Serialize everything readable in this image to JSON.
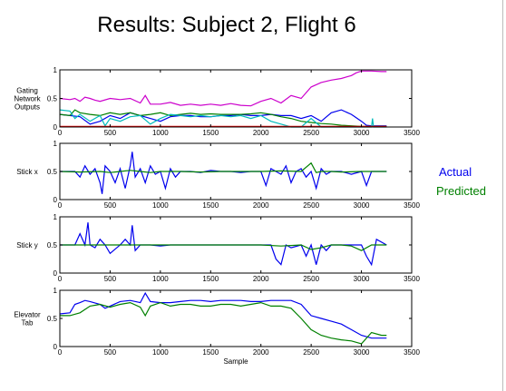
{
  "title": "Results: Subject 2, Flight 6",
  "legend": {
    "actual": "Actual",
    "predicted": "Predicted"
  },
  "colors": {
    "actual": "#0000ee",
    "predicted": "#008000",
    "magenta": "#cc00cc",
    "cyan": "#00bbbb",
    "red": "#ee0000"
  },
  "chart_data": [
    {
      "type": "line",
      "ylabel": "Gating\nNetwork\nOutputs",
      "xlim": [
        0,
        3500
      ],
      "ylim": [
        0,
        1
      ],
      "xticks": [
        "0",
        "500",
        "1000",
        "1500",
        "2000",
        "2500",
        "3000",
        "3500"
      ],
      "yticks": [
        "0",
        "0.5",
        "1"
      ],
      "series": [
        {
          "color": "#cc00cc",
          "x": [
            0,
            100,
            150,
            200,
            250,
            300,
            350,
            400,
            500,
            600,
            700,
            800,
            850,
            900,
            1000,
            1100,
            1200,
            1300,
            1400,
            1500,
            1600,
            1700,
            1800,
            1900,
            2000,
            2100,
            2200,
            2300,
            2400,
            2500,
            2600,
            2700,
            2800,
            2900,
            2950,
            3000,
            3100,
            3200,
            3250
          ],
          "y": [
            0.5,
            0.48,
            0.5,
            0.45,
            0.52,
            0.5,
            0.47,
            0.45,
            0.5,
            0.48,
            0.5,
            0.42,
            0.55,
            0.4,
            0.4,
            0.43,
            0.38,
            0.4,
            0.38,
            0.4,
            0.38,
            0.41,
            0.38,
            0.37,
            0.45,
            0.5,
            0.42,
            0.55,
            0.5,
            0.7,
            0.78,
            0.82,
            0.85,
            0.9,
            0.95,
            0.98,
            0.98,
            0.97,
            0.97
          ]
        },
        {
          "color": "#0000ee",
          "x": [
            0,
            100,
            200,
            300,
            400,
            500,
            600,
            700,
            800,
            900,
            1000,
            1100,
            1200,
            1300,
            1400,
            1500,
            1600,
            1700,
            1800,
            1900,
            2000,
            2100,
            2200,
            2300,
            2400,
            2500,
            2600,
            2700,
            2800,
            2900,
            3000,
            3050,
            3100,
            3250
          ],
          "y": [
            0.22,
            0.2,
            0.18,
            0.05,
            0.1,
            0.2,
            0.15,
            0.25,
            0.2,
            0.15,
            0.1,
            0.18,
            0.2,
            0.2,
            0.18,
            0.18,
            0.2,
            0.2,
            0.22,
            0.2,
            0.2,
            0.22,
            0.2,
            0.2,
            0.15,
            0.2,
            0.1,
            0.25,
            0.3,
            0.22,
            0.1,
            0.03,
            0.02,
            0.02
          ]
        },
        {
          "color": "#008000",
          "x": [
            0,
            100,
            150,
            200,
            300,
            400,
            500,
            600,
            700,
            800,
            900,
            1000,
            1100,
            1200,
            1300,
            1400,
            1500,
            1600,
            1700,
            1800,
            1900,
            2000,
            2100,
            2200,
            2300,
            2400,
            2500,
            2600,
            2700,
            2800,
            2900,
            3000,
            3250
          ],
          "y": [
            0.22,
            0.2,
            0.3,
            0.25,
            0.22,
            0.2,
            0.25,
            0.22,
            0.25,
            0.2,
            0.22,
            0.25,
            0.2,
            0.22,
            0.24,
            0.22,
            0.23,
            0.22,
            0.22,
            0.22,
            0.23,
            0.25,
            0.22,
            0.18,
            0.15,
            0.1,
            0.08,
            0.06,
            0.05,
            0.03,
            0.02,
            0.01,
            0.01
          ]
        },
        {
          "color": "#00bbbb",
          "x": [
            0,
            100,
            150,
            200,
            300,
            400,
            450,
            500,
            600,
            700,
            800,
            900,
            1000,
            1100,
            1200,
            1300,
            1400,
            1500,
            1600,
            1700,
            1800,
            1900,
            2000,
            2100,
            2200,
            2300,
            2400,
            2500,
            2600,
            2700,
            2800,
            2900,
            3000,
            3100,
            3110,
            3120,
            3250
          ],
          "y": [
            0.3,
            0.28,
            0.15,
            0.22,
            0.1,
            0.2,
            0.02,
            0.15,
            0.1,
            0.18,
            0.2,
            0.05,
            0.15,
            0.22,
            0.2,
            0.18,
            0.2,
            0.18,
            0.2,
            0.18,
            0.2,
            0.15,
            0.2,
            0.1,
            0.05,
            0.0,
            0.0,
            0.15,
            0.0,
            0.0,
            0.0,
            0.0,
            0.0,
            0.0,
            0.15,
            0.0,
            0.0
          ]
        },
        {
          "color": "#ee0000",
          "x": [
            0,
            3250
          ],
          "y": [
            0.01,
            0.01
          ]
        }
      ]
    },
    {
      "type": "line",
      "ylabel": "Stick x",
      "xlim": [
        0,
        3500
      ],
      "ylim": [
        0,
        1
      ],
      "xticks": [
        "0",
        "500",
        "1000",
        "1500",
        "2000",
        "2500",
        "3000",
        "3500"
      ],
      "yticks": [
        "0",
        "0.5",
        "1"
      ],
      "series": [
        {
          "name": "Actual",
          "color": "#0000ee",
          "x": [
            0,
            150,
            200,
            250,
            300,
            350,
            400,
            420,
            450,
            500,
            550,
            600,
            650,
            700,
            720,
            750,
            800,
            850,
            900,
            950,
            1000,
            1050,
            1100,
            1150,
            1200,
            1300,
            1400,
            1500,
            1600,
            1700,
            1800,
            1900,
            2000,
            2050,
            2100,
            2150,
            2200,
            2250,
            2300,
            2350,
            2400,
            2450,
            2500,
            2550,
            2600,
            2650,
            2700,
            2800,
            2900,
            3000,
            3050,
            3100,
            3150,
            3250
          ],
          "y": [
            0.5,
            0.5,
            0.4,
            0.6,
            0.45,
            0.55,
            0.3,
            0.1,
            0.6,
            0.5,
            0.3,
            0.55,
            0.2,
            0.6,
            0.85,
            0.4,
            0.55,
            0.3,
            0.6,
            0.45,
            0.5,
            0.2,
            0.55,
            0.4,
            0.5,
            0.5,
            0.48,
            0.52,
            0.5,
            0.5,
            0.48,
            0.5,
            0.5,
            0.25,
            0.55,
            0.5,
            0.45,
            0.6,
            0.3,
            0.5,
            0.55,
            0.4,
            0.5,
            0.2,
            0.55,
            0.45,
            0.5,
            0.5,
            0.45,
            0.5,
            0.25,
            0.5,
            0.5,
            0.5
          ]
        },
        {
          "name": "Predicted",
          "color": "#008000",
          "x": [
            0,
            200,
            400,
            500,
            600,
            700,
            800,
            900,
            1000,
            1200,
            1400,
            1600,
            1800,
            2000,
            2200,
            2400,
            2500,
            2550,
            2600,
            2700,
            2800,
            3000,
            3100,
            3250
          ],
          "y": [
            0.5,
            0.49,
            0.5,
            0.48,
            0.5,
            0.52,
            0.5,
            0.48,
            0.5,
            0.5,
            0.49,
            0.5,
            0.5,
            0.5,
            0.51,
            0.5,
            0.65,
            0.48,
            0.5,
            0.5,
            0.49,
            0.5,
            0.5,
            0.5
          ]
        }
      ]
    },
    {
      "type": "line",
      "ylabel": "Stick y",
      "xlim": [
        0,
        3500
      ],
      "ylim": [
        0,
        1
      ],
      "xticks": [
        "0",
        "500",
        "1000",
        "1500",
        "2000",
        "2500",
        "3000",
        "3500"
      ],
      "yticks": [
        "0",
        "0.5",
        "1"
      ],
      "series": [
        {
          "name": "Actual",
          "color": "#0000ee",
          "x": [
            0,
            150,
            200,
            250,
            280,
            300,
            350,
            400,
            450,
            500,
            600,
            650,
            700,
            720,
            750,
            800,
            900,
            1000,
            1100,
            1200,
            1400,
            1600,
            1800,
            2000,
            2100,
            2150,
            2200,
            2250,
            2300,
            2400,
            2450,
            2500,
            2550,
            2600,
            2650,
            2700,
            2800,
            2900,
            3000,
            3050,
            3100,
            3150,
            3250
          ],
          "y": [
            0.5,
            0.5,
            0.7,
            0.5,
            0.9,
            0.5,
            0.45,
            0.6,
            0.5,
            0.35,
            0.5,
            0.6,
            0.5,
            0.85,
            0.4,
            0.5,
            0.5,
            0.48,
            0.5,
            0.5,
            0.5,
            0.5,
            0.5,
            0.5,
            0.5,
            0.25,
            0.15,
            0.5,
            0.45,
            0.5,
            0.3,
            0.5,
            0.15,
            0.5,
            0.4,
            0.5,
            0.5,
            0.5,
            0.5,
            0.3,
            0.15,
            0.6,
            0.5
          ]
        },
        {
          "name": "Predicted",
          "color": "#008000",
          "x": [
            0,
            200,
            400,
            600,
            800,
            1000,
            1200,
            1400,
            1600,
            1800,
            2000,
            2200,
            2400,
            2500,
            2600,
            2700,
            2800,
            2900,
            3000,
            3100,
            3250
          ],
          "y": [
            0.5,
            0.5,
            0.5,
            0.5,
            0.5,
            0.5,
            0.5,
            0.5,
            0.5,
            0.5,
            0.5,
            0.48,
            0.5,
            0.42,
            0.45,
            0.5,
            0.5,
            0.48,
            0.4,
            0.5,
            0.5
          ]
        }
      ]
    },
    {
      "type": "line",
      "ylabel": "Elevator\nTab",
      "xlabel": "Sample",
      "xlim": [
        0,
        3500
      ],
      "ylim": [
        0,
        1
      ],
      "xticks": [
        "0",
        "500",
        "1000",
        "1500",
        "2000",
        "2500",
        "3000",
        "3500"
      ],
      "yticks": [
        "0",
        "0.5",
        "1"
      ],
      "series": [
        {
          "name": "Actual",
          "color": "#0000ee",
          "x": [
            0,
            100,
            150,
            200,
            250,
            300,
            400,
            450,
            500,
            600,
            700,
            800,
            850,
            900,
            1000,
            1100,
            1200,
            1300,
            1400,
            1500,
            1600,
            1700,
            1800,
            1900,
            2000,
            2100,
            2200,
            2300,
            2400,
            2500,
            2600,
            2700,
            2800,
            2900,
            3000,
            3100,
            3200,
            3250
          ],
          "y": [
            0.58,
            0.6,
            0.75,
            0.78,
            0.82,
            0.8,
            0.75,
            0.68,
            0.72,
            0.8,
            0.82,
            0.78,
            0.95,
            0.8,
            0.78,
            0.78,
            0.8,
            0.82,
            0.82,
            0.8,
            0.82,
            0.82,
            0.82,
            0.8,
            0.8,
            0.82,
            0.82,
            0.82,
            0.75,
            0.55,
            0.5,
            0.45,
            0.4,
            0.3,
            0.2,
            0.15,
            0.15,
            0.15
          ]
        },
        {
          "name": "Predicted",
          "color": "#008000",
          "x": [
            0,
            100,
            200,
            300,
            400,
            500,
            600,
            700,
            800,
            850,
            900,
            1000,
            1100,
            1200,
            1300,
            1400,
            1500,
            1600,
            1700,
            1800,
            1900,
            2000,
            2100,
            2200,
            2300,
            2400,
            2500,
            2600,
            2700,
            2800,
            2900,
            3000,
            3100,
            3200,
            3250
          ],
          "y": [
            0.55,
            0.55,
            0.6,
            0.72,
            0.75,
            0.7,
            0.75,
            0.78,
            0.7,
            0.55,
            0.72,
            0.78,
            0.72,
            0.75,
            0.75,
            0.72,
            0.72,
            0.75,
            0.75,
            0.72,
            0.75,
            0.78,
            0.72,
            0.72,
            0.68,
            0.5,
            0.3,
            0.2,
            0.15,
            0.12,
            0.1,
            0.05,
            0.25,
            0.2,
            0.2
          ]
        }
      ]
    }
  ]
}
